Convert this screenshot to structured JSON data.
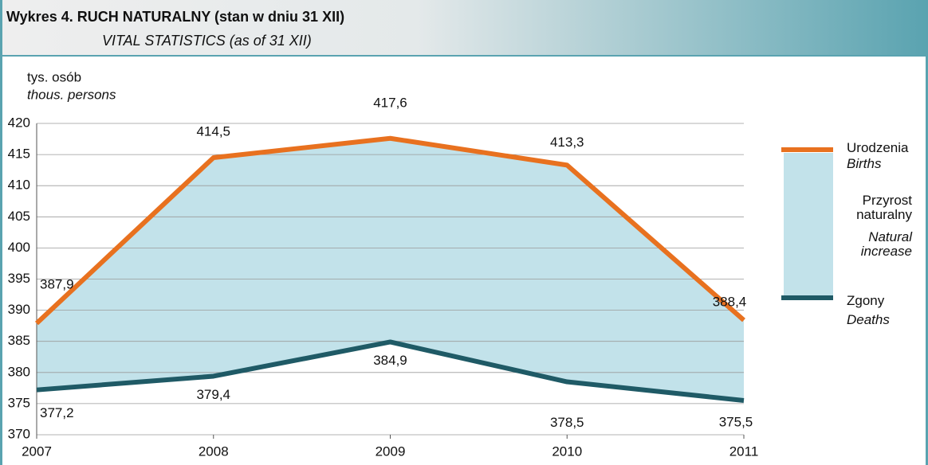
{
  "chart_data": {
    "type": "line",
    "title": "Wykres 4. RUCH NATURALNY (stan w dniu 31 XII)",
    "subtitle": "VITAL STATISTICS (as of 31 XII)",
    "y_label": "tys. osób",
    "y_label_en": "thous. persons",
    "categories": [
      "2007",
      "2008",
      "2009",
      "2010",
      "2011"
    ],
    "series": [
      {
        "name": "Urodzenia",
        "name_en": "Births",
        "color": "#e8711f",
        "values": [
          387.9,
          414.5,
          417.6,
          413.3,
          388.4
        ],
        "value_labels": [
          "387,9",
          "414,5",
          "417,6",
          "413,3",
          "388,4"
        ]
      },
      {
        "name": "Zgony",
        "name_en": "Deaths",
        "color": "#1f5a66",
        "values": [
          377.2,
          379.4,
          384.9,
          378.5,
          375.5
        ],
        "value_labels": [
          "377,2",
          "379,4",
          "384,9",
          "378,5",
          "375,5"
        ]
      }
    ],
    "area": {
      "name": "Przyrost naturalny",
      "name_en": "Natural increase",
      "color": "#c2e2ea"
    },
    "ylim": [
      370,
      420
    ],
    "yticks": [
      370,
      375,
      380,
      385,
      390,
      395,
      400,
      405,
      410,
      415,
      420
    ],
    "grid": true
  }
}
